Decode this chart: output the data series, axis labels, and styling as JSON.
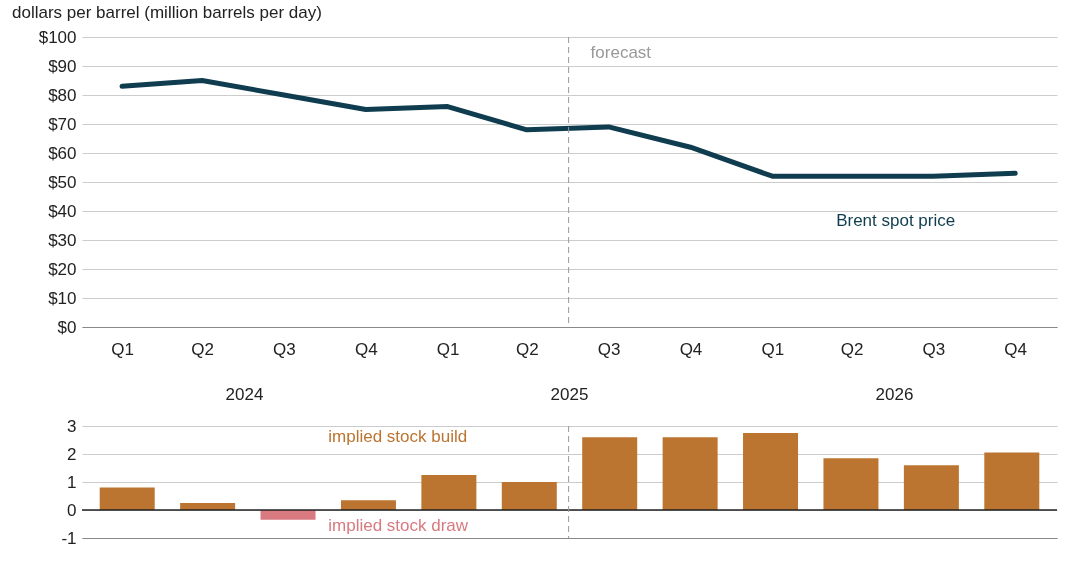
{
  "chart_data": [
    {
      "type": "line",
      "title": "dollars per barrel (million barrels per day)",
      "x": [
        "2024-02-15",
        "2024-05-15",
        "2024-08-15",
        "2024-11-15",
        "2025-02-15",
        "2025-05-15",
        "2025-08-15",
        "2025-11-15",
        "2026-02-15",
        "2026-05-15",
        "2026-08-15",
        "2026-11-15"
      ],
      "series": [
        {
          "name": "Brent spot price",
          "color": "#0f3d4f",
          "values": [
            83,
            85,
            80,
            75,
            76,
            68,
            69,
            62,
            52,
            52,
            52,
            53
          ]
        }
      ],
      "xlim": [
        "2024-01-01",
        "2027-01-01"
      ],
      "xticks": [
        {
          "value": "2024-02-15",
          "label": "Q1"
        },
        {
          "value": "2024-05-15",
          "label": "Q2"
        },
        {
          "value": "2024-08-15",
          "label": "Q3"
        },
        {
          "value": "2024-11-15",
          "label": "Q4"
        },
        {
          "value": "2025-02-15",
          "label": "Q1"
        },
        {
          "value": "2025-05-15",
          "label": "Q2"
        },
        {
          "value": "2025-08-15",
          "label": "Q3"
        },
        {
          "value": "2025-11-15",
          "label": "Q4"
        },
        {
          "value": "2026-02-15",
          "label": "Q1"
        },
        {
          "value": "2026-05-15",
          "label": "Q2"
        },
        {
          "value": "2026-08-15",
          "label": "Q3"
        },
        {
          "value": "2026-11-15",
          "label": "Q4"
        }
      ],
      "ylim": [
        0,
        100
      ],
      "yticks": [
        {
          "value": 0,
          "label": "$0"
        },
        {
          "value": 10,
          "label": "$10"
        },
        {
          "value": 20,
          "label": "$20"
        },
        {
          "value": 30,
          "label": "$30"
        },
        {
          "value": 40,
          "label": "$40"
        },
        {
          "value": 50,
          "label": "$50"
        },
        {
          "value": 60,
          "label": "$60"
        },
        {
          "value": 70,
          "label": "$70"
        },
        {
          "value": 80,
          "label": "$80"
        },
        {
          "value": 90,
          "label": "$90"
        },
        {
          "value": 100,
          "label": "$100"
        }
      ],
      "grid": "y",
      "marker": "none",
      "line_style": "solid",
      "ref_lines": [
        {
          "axis": "x",
          "value": "2025-07-01",
          "label": "forecast",
          "color": "#999999",
          "line_style": "dashed"
        }
      ],
      "annotations": [
        "2024",
        "2025",
        "2026"
      ]
    },
    {
      "type": "bar",
      "categories": [
        null,
        null,
        null,
        null,
        null,
        null,
        null,
        null,
        null,
        null,
        null,
        null
      ],
      "values": [
        0.8,
        0.25,
        -0.35,
        0.35,
        1.25,
        1.0,
        2.6,
        2.6,
        2.75,
        1.85,
        1.6,
        2.05
      ],
      "colors": [
        "#bc7431",
        "#bc7431",
        "#d87a80",
        "#bc7431",
        "#bc7431",
        "#bc7431",
        "#bc7431",
        "#bc7431",
        "#bc7431",
        "#bc7431",
        "#bc7431",
        "#bc7431"
      ],
      "ylim": [
        -1,
        3
      ],
      "yticks": [
        -1,
        0,
        1,
        2,
        3
      ],
      "grid": "y",
      "tick_labels": "y",
      "annotations": [
        "implied  stock build",
        "implied  stock draw"
      ]
    }
  ]
}
